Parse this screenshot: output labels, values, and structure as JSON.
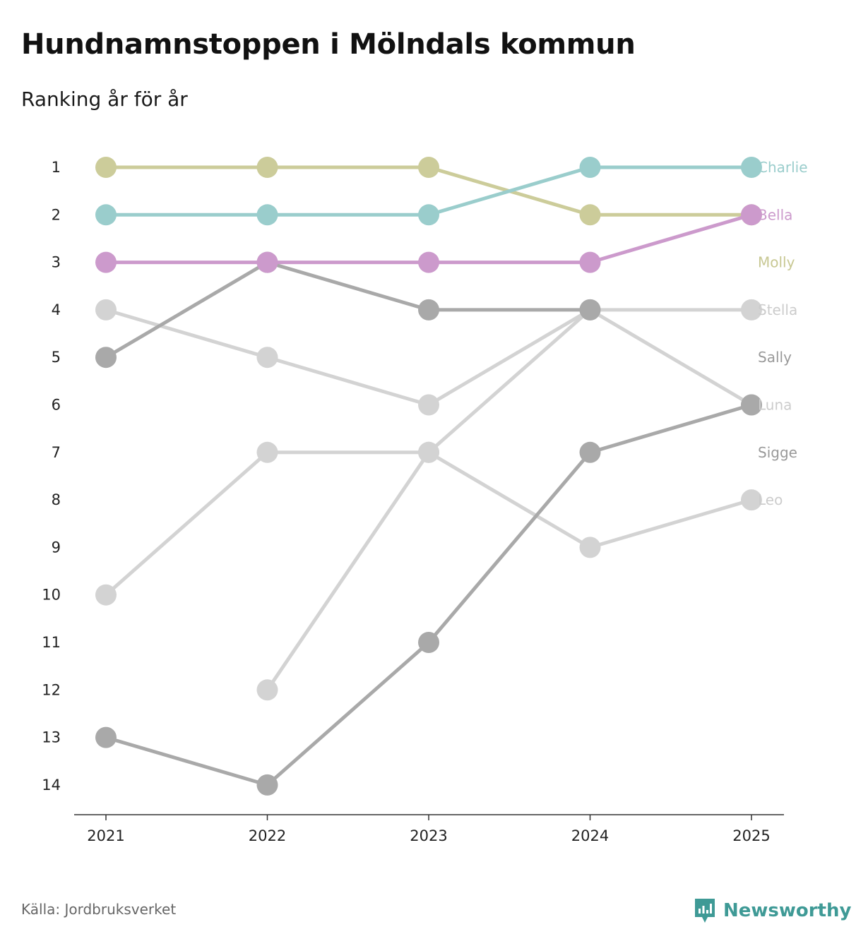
{
  "title": "Hundnamnstoppen i Mölndals kommun",
  "subtitle": "Ranking år för år",
  "source": "Källa: Jordbruksverket",
  "brand": "Newsworthy",
  "brand_color": "#3f9a96",
  "chart_data": {
    "type": "line",
    "title": "Hundnamnstoppen i Mölndals kommun",
    "subtitle": "Ranking år för år",
    "x": [
      "2021",
      "2022",
      "2023",
      "2024",
      "2025"
    ],
    "y_ticks": [
      1,
      2,
      3,
      4,
      5,
      6,
      7,
      8,
      9,
      10,
      11,
      12,
      13,
      14
    ],
    "ylim": [
      1,
      14
    ],
    "y_inverted": true,
    "xlabel": "",
    "ylabel": "",
    "grid": false,
    "series": [
      {
        "name": "Charlie",
        "values": [
          2,
          2,
          2,
          1,
          1
        ],
        "color": "#9acdcc",
        "label_color": "#9acdcc"
      },
      {
        "name": "Bella",
        "values": [
          3,
          3,
          3,
          3,
          2
        ],
        "color": "#cc9acc",
        "label_color": "#cc9acc"
      },
      {
        "name": "Molly",
        "values": [
          1,
          1,
          1,
          2,
          2
        ],
        "color": "#cccc9a",
        "label_color": "#c8c893"
      },
      {
        "name": "Stella",
        "values": [
          10,
          7,
          7,
          4,
          4
        ],
        "color": "#d3d3d3",
        "label_color": "#cccccc"
      },
      {
        "name": "Sally",
        "values": [
          5,
          3,
          4,
          4,
          null
        ],
        "color": "#a9a9a9",
        "label_color": "#999999"
      },
      {
        "name": "Luna",
        "values": [
          4,
          5,
          6,
          4,
          6
        ],
        "color": "#d3d3d3",
        "label_color": "#cccccc"
      },
      {
        "name": "Sigge",
        "values": [
          13,
          14,
          11,
          7,
          6
        ],
        "color": "#a9a9a9",
        "label_color": "#999999"
      },
      {
        "name": "Leo",
        "values": [
          null,
          12,
          7,
          9,
          8
        ],
        "color": "#d3d3d3",
        "label_color": "#cccccc"
      }
    ],
    "labels": [
      {
        "text": "Charlie",
        "rank": 1,
        "color": "#9acdcc"
      },
      {
        "text": "Bella",
        "rank": 2,
        "color": "#cc9acc"
      },
      {
        "text": "Molly",
        "rank": 3,
        "color": "#c8c893"
      },
      {
        "text": "Stella",
        "rank": 4,
        "color": "#cccccc"
      },
      {
        "text": "Sally",
        "rank": 5,
        "color": "#999999"
      },
      {
        "text": "Luna",
        "rank": 6,
        "color": "#cccccc"
      },
      {
        "text": "Sigge",
        "rank": 7,
        "color": "#999999"
      },
      {
        "text": "Leo",
        "rank": 8,
        "color": "#cccccc"
      }
    ]
  }
}
